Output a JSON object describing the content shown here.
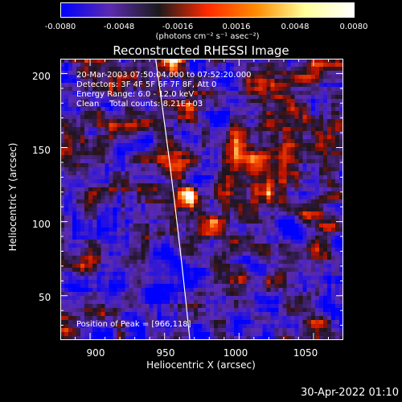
{
  "colorbar": {
    "ticks": [
      "-0.0080",
      "-0.0048",
      "-0.0016",
      "0.0016",
      "0.0048",
      "0.0080"
    ],
    "units_label": "(photons cm⁻² s⁻¹ asec⁻²)",
    "colors": [
      "#0000ff",
      "#5b2bb0",
      "#1a1a1a",
      "#ff2a00",
      "#ff8c00",
      "#ffff9a",
      "#ffffff"
    ]
  },
  "chart_data": {
    "type": "heatmap",
    "title": "Reconstructed RHESSI Image",
    "xlabel": "Heliocentric X (arcsec)",
    "ylabel": "Heliocentric Y (arcsec)",
    "xlim": [
      880,
      1070
    ],
    "ylim": [
      20,
      210
    ],
    "xticks": [
      "900",
      "950",
      "1000",
      "1050"
    ],
    "yticks": [
      "50",
      "100",
      "150",
      "200"
    ],
    "peak_position": [
      966,
      118
    ],
    "limb_line": {
      "x_at_top": 944,
      "x_at_bottom": 967
    }
  },
  "info_lines": [
    "20-Mar-2003 07:50:04.000 to 07:52:20.000",
    "Detectors: 3F 4F 5F 6F 7F 8F, Att 0",
    "Energy Range: 6.0 - 12.0 keV",
    "Clean    Total counts: 8.21E+03"
  ],
  "peak_label": "Position of Peak = [966,118]",
  "footer_timestamp": "30-Apr-2022 01:10"
}
